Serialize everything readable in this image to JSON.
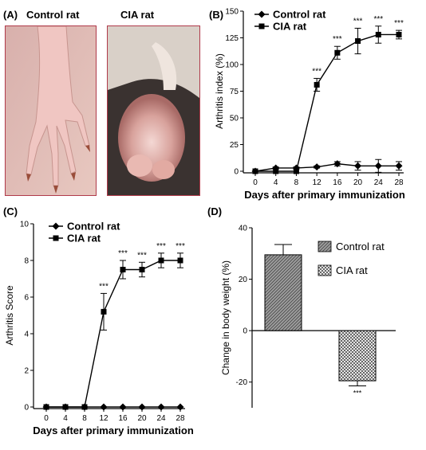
{
  "panel_a": {
    "label": "(A)",
    "left_caption": "Control  rat",
    "right_caption": "CIA  rat"
  },
  "chart_data": [
    {
      "panel": "(B)",
      "type": "line",
      "xlabel": "Days after primary immunization",
      "ylabel": "Arthritis  index (%)",
      "x": [
        0,
        4,
        8,
        12,
        16,
        20,
        24,
        28
      ],
      "xlim": [
        0,
        28
      ],
      "ylim": [
        0,
        150
      ],
      "yticks": [
        0,
        25,
        50,
        75,
        100,
        125,
        150
      ],
      "grid": false,
      "legend_position": "top-left",
      "series": [
        {
          "name": "Control  rat",
          "marker": "diamond",
          "values": [
            0,
            3,
            3,
            4,
            7,
            5,
            5,
            5
          ],
          "errors": [
            0,
            1,
            1,
            1,
            2,
            4,
            6,
            4
          ]
        },
        {
          "name": "CIA  rat",
          "marker": "square",
          "values": [
            0,
            0,
            0,
            81,
            111,
            122,
            128,
            128
          ],
          "errors": [
            0,
            0,
            0,
            6,
            6,
            12,
            8,
            4
          ]
        }
      ],
      "significance": [
        "",
        "",
        "",
        "***",
        "***",
        "***",
        "***",
        "***"
      ]
    },
    {
      "panel": "(C)",
      "type": "line",
      "xlabel": "Days after primary immunization",
      "ylabel": "Arthritis  Score",
      "x": [
        0,
        4,
        8,
        12,
        16,
        20,
        24,
        28
      ],
      "xlim": [
        0,
        28
      ],
      "ylim": [
        0,
        10
      ],
      "yticks": [
        0,
        2,
        4,
        6,
        8,
        10
      ],
      "grid": false,
      "legend_position": "top-left",
      "series": [
        {
          "name": "Control  rat",
          "marker": "diamond",
          "values": [
            0,
            0,
            0,
            0,
            0,
            0,
            0,
            0
          ],
          "errors": [
            0,
            0,
            0,
            0,
            0,
            0,
            0,
            0
          ]
        },
        {
          "name": "CIA  rat",
          "marker": "square",
          "values": [
            0,
            0,
            0,
            5.2,
            7.5,
            7.5,
            8,
            8
          ],
          "errors": [
            0,
            0,
            0,
            1.0,
            0.5,
            0.4,
            0.4,
            0.4
          ]
        }
      ],
      "significance": [
        "",
        "",
        "",
        "***",
        "***",
        "***",
        "***",
        "***"
      ]
    },
    {
      "panel": "(D)",
      "type": "bar",
      "ylabel": "Change in body weight (%)",
      "categories": [
        "Control rat",
        "CIA rat"
      ],
      "values": [
        29.5,
        -19.5
      ],
      "errors": [
        4,
        2
      ],
      "ylim": [
        -30,
        40
      ],
      "yticks": [
        -20,
        0,
        20,
        40
      ],
      "grid": false,
      "legend_position": "right",
      "significance": [
        "",
        "***"
      ]
    }
  ]
}
